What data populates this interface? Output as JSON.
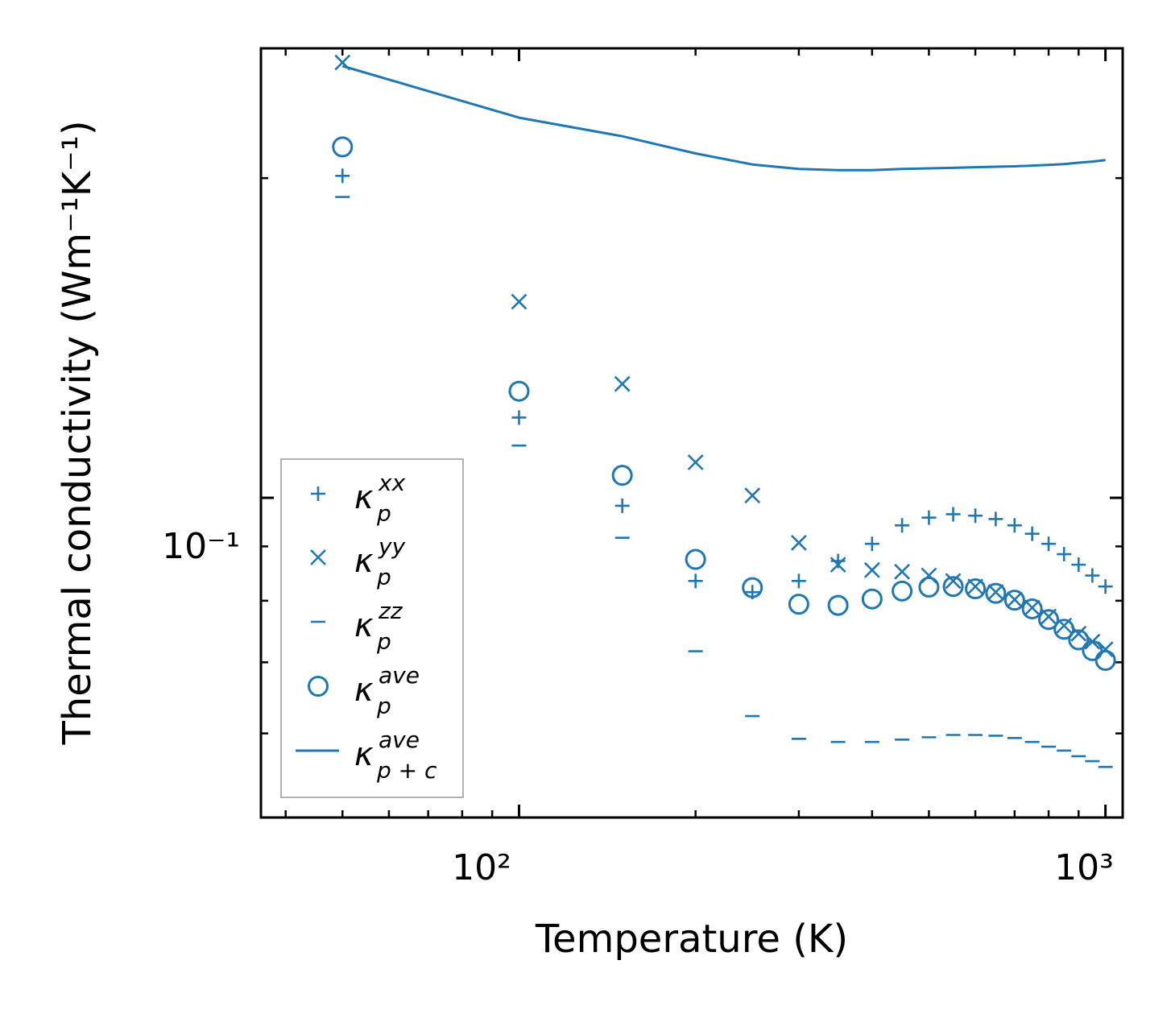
{
  "chart_data": {
    "type": "scatter",
    "xlabel": "Temperature (K)",
    "ylabel": "Thermal conductivity (Wm⁻¹K⁻¹)",
    "xscale": "log",
    "yscale": "log",
    "xlim": [
      36.3,
      1070
    ],
    "ylim": [
      0.05,
      0.265
    ],
    "x_tick_labels": [
      "10²",
      "10³"
    ],
    "y_tick_labels": [
      "10⁻¹"
    ],
    "x_major_ticks": [
      100,
      1000
    ],
    "y_major_ticks": [
      0.1
    ],
    "color": "#1f77b4",
    "legend_position": "lower-left",
    "series": [
      {
        "name": "κ_p^xx",
        "label_base": "κ",
        "label_sub": "p",
        "label_sup": "xx",
        "marker": "plus",
        "x": [
          50,
          100,
          150,
          200,
          250,
          300,
          350,
          400,
          450,
          500,
          550,
          600,
          650,
          700,
          750,
          800,
          850,
          900,
          950,
          1000
        ],
        "y": [
          0.201,
          0.119,
          0.0983,
          0.0835,
          0.0815,
          0.0835,
          0.0872,
          0.0905,
          0.0942,
          0.0958,
          0.0965,
          0.0962,
          0.0955,
          0.0942,
          0.0925,
          0.0905,
          0.0885,
          0.0865,
          0.0845,
          0.0825
        ]
      },
      {
        "name": "κ_p^yy",
        "label_base": "κ",
        "label_sub": "p",
        "label_sup": "yy",
        "marker": "x",
        "x": [
          50,
          100,
          150,
          200,
          250,
          300,
          350,
          400,
          450,
          500,
          550,
          600,
          650,
          700,
          750,
          800,
          850,
          900,
          950,
          1000
        ],
        "y": [
          0.257,
          0.153,
          0.128,
          0.108,
          0.1005,
          0.0907,
          0.0865,
          0.0855,
          0.0852,
          0.0845,
          0.0835,
          0.0825,
          0.0815,
          0.0802,
          0.0788,
          0.0773,
          0.0758,
          0.0745,
          0.0732,
          0.072
        ]
      },
      {
        "name": "κ_p^zz",
        "label_base": "κ",
        "label_sub": "p",
        "label_sup": "zz",
        "marker": "hline",
        "x": [
          50,
          100,
          150,
          200,
          250,
          300,
          350,
          400,
          450,
          500,
          550,
          600,
          650,
          700,
          750,
          800,
          850,
          900,
          950,
          1000
        ],
        "y": [
          0.192,
          0.112,
          0.0917,
          0.0717,
          0.0623,
          0.0593,
          0.0589,
          0.0589,
          0.0592,
          0.0595,
          0.0598,
          0.0598,
          0.0597,
          0.0594,
          0.0589,
          0.0583,
          0.0578,
          0.0571,
          0.0565,
          0.0558
        ]
      },
      {
        "name": "κ_p^ave",
        "label_base": "κ",
        "label_sub": "p",
        "label_sup": "ave",
        "marker": "circle",
        "x": [
          50,
          100,
          150,
          200,
          250,
          300,
          350,
          400,
          450,
          500,
          550,
          600,
          650,
          700,
          750,
          800,
          850,
          900,
          950,
          1000
        ],
        "y": [
          0.214,
          0.126,
          0.105,
          0.0875,
          0.0823,
          0.0794,
          0.0792,
          0.0803,
          0.0817,
          0.0824,
          0.0825,
          0.0821,
          0.0813,
          0.0801,
          0.0786,
          0.0768,
          0.0752,
          0.0735,
          0.0718,
          0.0703
        ]
      },
      {
        "name": "κ_p+c^ave",
        "label_base": "κ",
        "label_sub": "p + c",
        "label_sup": "ave",
        "marker": "line",
        "x": [
          50,
          100,
          150,
          200,
          250,
          300,
          350,
          400,
          450,
          500,
          550,
          600,
          650,
          700,
          750,
          800,
          850,
          900,
          950,
          1000
        ],
        "y": [
          0.255,
          0.228,
          0.219,
          0.211,
          0.206,
          0.204,
          0.2035,
          0.2035,
          0.204,
          0.2043,
          0.2045,
          0.2048,
          0.205,
          0.2052,
          0.2055,
          0.2058,
          0.2062,
          0.2068,
          0.2073,
          0.208
        ]
      }
    ]
  }
}
